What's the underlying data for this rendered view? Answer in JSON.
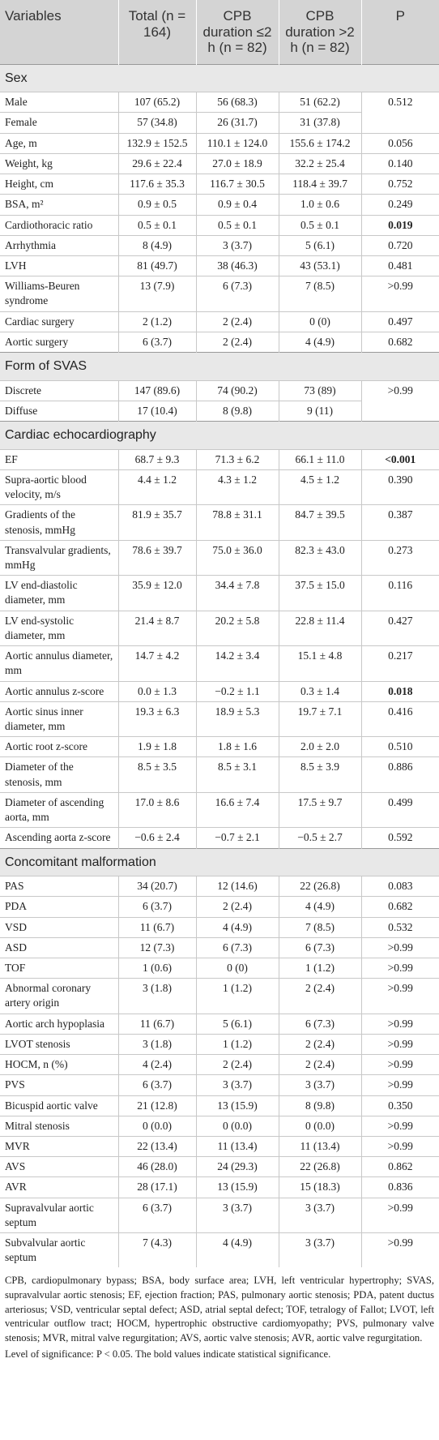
{
  "table": {
    "header": [
      "Variables",
      "Total (n = 164)",
      "CPB duration ≤2 h (n = 82)",
      "CPB duration >2 h (n = 82)",
      "P"
    ],
    "rows": [
      {
        "section": "Sex"
      },
      {
        "cells": [
          "Male",
          "107 (65.2)",
          "56 (68.3)",
          "51 (62.2)",
          "0.512"
        ]
      },
      {
        "cells": [
          "Female",
          "57 (34.8)",
          "26 (31.7)",
          "31 (37.8)"
        ]
      },
      {
        "cells": [
          "Age, m",
          "132.9 ± 152.5",
          "110.1 ± 124.0",
          "155.6 ± 174.2",
          "0.056"
        ]
      },
      {
        "cells": [
          "Weight, kg",
          "29.6 ± 22.4",
          "27.0 ± 18.9",
          "32.2 ± 25.4",
          "0.140"
        ]
      },
      {
        "cells": [
          "Height, cm",
          "117.6 ± 35.3",
          "116.7 ± 30.5",
          "118.4 ± 39.7",
          "0.752"
        ]
      },
      {
        "cells": [
          "BSA, m²",
          "0.9 ± 0.5",
          "0.9 ± 0.4",
          "1.0 ± 0.6",
          "0.249"
        ]
      },
      {
        "cells": [
          "Cardiothoracic ratio",
          "0.5 ± 0.1",
          "0.5 ± 0.1",
          "0.5 ± 0.1",
          "0.019"
        ],
        "significant": true
      },
      {
        "cells": [
          "Arrhythmia",
          "8 (4.9)",
          "3 (3.7)",
          "5 (6.1)",
          "0.720"
        ]
      },
      {
        "cells": [
          "LVH",
          "81 (49.7)",
          "38 (46.3)",
          "43 (53.1)",
          "0.481"
        ]
      },
      {
        "cells": [
          "Williams-Beuren syndrome",
          "13 (7.9)",
          "6 (7.3)",
          "7 (8.5)",
          ">0.99"
        ]
      },
      {
        "cells": [
          "Cardiac surgery",
          "2 (1.2)",
          "2 (2.4)",
          "0 (0)",
          "0.497"
        ]
      },
      {
        "cells": [
          "Aortic surgery",
          "6 (3.7)",
          "2 (2.4)",
          "4 (4.9)",
          "0.682"
        ]
      },
      {
        "section": "Form of SVAS"
      },
      {
        "cells": [
          "Discrete",
          "147 (89.6)",
          "74 (90.2)",
          "73 (89)",
          ">0.99"
        ]
      },
      {
        "cells": [
          "Diffuse",
          "17 (10.4)",
          "8 (9.8)",
          "9 (11)"
        ]
      },
      {
        "section": "Cardiac echocardiography"
      },
      {
        "cells": [
          "EF",
          "68.7 ± 9.3",
          "71.3 ± 6.2",
          "66.1 ± 11.0",
          "<0.001"
        ],
        "significant": true
      },
      {
        "cells": [
          "Supra-aortic blood velocity, m/s",
          "4.4 ± 1.2",
          "4.3 ± 1.2",
          "4.5 ± 1.2",
          "0.390"
        ]
      },
      {
        "cells": [
          "Gradients of the stenosis, mmHg",
          "81.9 ± 35.7",
          "78.8 ± 31.1",
          "84.7 ± 39.5",
          "0.387"
        ]
      },
      {
        "cells": [
          "Transvalvular gradients, mmHg",
          "78.6 ± 39.7",
          "75.0 ± 36.0",
          "82.3 ± 43.0",
          "0.273"
        ]
      },
      {
        "cells": [
          "LV end-diastolic diameter, mm",
          "35.9 ± 12.0",
          "34.4 ± 7.8",
          "37.5 ± 15.0",
          "0.116"
        ]
      },
      {
        "cells": [
          "LV end-systolic diameter, mm",
          "21.4 ± 8.7",
          "20.2 ± 5.8",
          "22.8 ± 11.4",
          "0.427"
        ]
      },
      {
        "cells": [
          "Aortic annulus diameter, mm",
          "14.7 ± 4.2",
          "14.2 ± 3.4",
          "15.1 ± 4.8",
          "0.217"
        ]
      },
      {
        "cells": [
          "Aortic annulus z-score",
          "0.0 ± 1.3",
          "−0.2 ± 1.1",
          "0.3 ± 1.4",
          "0.018"
        ],
        "significant": true
      },
      {
        "cells": [
          "Aortic sinus inner diameter, mm",
          "19.3 ± 6.3",
          "18.9 ± 5.3",
          "19.7 ± 7.1",
          "0.416"
        ]
      },
      {
        "cells": [
          "Aortic root z-score",
          "1.9 ± 1.8",
          "1.8 ± 1.6",
          "2.0 ± 2.0",
          "0.510"
        ]
      },
      {
        "cells": [
          "Diameter of the stenosis, mm",
          "8.5 ± 3.5",
          "8.5 ± 3.1",
          "8.5 ± 3.9",
          "0.886"
        ]
      },
      {
        "cells": [
          "Diameter of ascending aorta, mm",
          "17.0 ± 8.6",
          "16.6 ± 7.4",
          "17.5 ± 9.7",
          "0.499"
        ]
      },
      {
        "cells": [
          "Ascending aorta z-score",
          "−0.6 ± 2.4",
          "−0.7 ± 2.1",
          "−0.5 ± 2.7",
          "0.592"
        ]
      },
      {
        "section": "Concomitant malformation"
      },
      {
        "cells": [
          "PAS",
          "34 (20.7)",
          "12 (14.6)",
          "22 (26.8)",
          "0.083"
        ]
      },
      {
        "cells": [
          "PDA",
          "6 (3.7)",
          "2 (2.4)",
          "4 (4.9)",
          "0.682"
        ]
      },
      {
        "cells": [
          "VSD",
          "11 (6.7)",
          "4 (4.9)",
          "7 (8.5)",
          "0.532"
        ]
      },
      {
        "cells": [
          "ASD",
          "12 (7.3)",
          "6 (7.3)",
          "6 (7.3)",
          ">0.99"
        ]
      },
      {
        "cells": [
          "TOF",
          "1 (0.6)",
          "0 (0)",
          "1 (1.2)",
          ">0.99"
        ]
      },
      {
        "cells": [
          "Abnormal coronary artery origin",
          "3 (1.8)",
          "1 (1.2)",
          "2 (2.4)",
          ">0.99"
        ]
      },
      {
        "cells": [
          "Aortic arch hypoplasia",
          "11 (6.7)",
          "5 (6.1)",
          "6 (7.3)",
          ">0.99"
        ]
      },
      {
        "cells": [
          "LVOT stenosis",
          "3 (1.8)",
          "1 (1.2)",
          "2 (2.4)",
          ">0.99"
        ]
      },
      {
        "cells": [
          "HOCM, n (%)",
          "4 (2.4)",
          "2 (2.4)",
          "2 (2.4)",
          ">0.99"
        ]
      },
      {
        "cells": [
          "PVS",
          "6 (3.7)",
          "3 (3.7)",
          "3 (3.7)",
          ">0.99"
        ]
      },
      {
        "cells": [
          "Bicuspid aortic valve",
          "21 (12.8)",
          "13 (15.9)",
          "8 (9.8)",
          "0.350"
        ]
      },
      {
        "cells": [
          "Mitral stenosis",
          "0 (0.0)",
          "0 (0.0)",
          "0 (0.0)",
          ">0.99"
        ]
      },
      {
        "cells": [
          "MVR",
          "22 (13.4)",
          "11 (13.4)",
          "11 (13.4)",
          ">0.99"
        ]
      },
      {
        "cells": [
          "AVS",
          "46 (28.0)",
          "24 (29.3)",
          "22 (26.8)",
          "0.862"
        ]
      },
      {
        "cells": [
          "AVR",
          "28 (17.1)",
          "13 (15.9)",
          "15 (18.3)",
          "0.836"
        ]
      },
      {
        "cells": [
          "Supravalvular aortic septum",
          "6 (3.7)",
          "3 (3.7)",
          "3 (3.7)",
          ">0.99"
        ]
      },
      {
        "cells": [
          "Subvalvular aortic septum",
          "7 (4.3)",
          "4 (4.9)",
          "3 (3.7)",
          ">0.99"
        ]
      }
    ],
    "footnotes": [
      "CPB, cardiopulmonary bypass; BSA, body surface area; LVH, left ventricular hypertrophy; SVAS, supravalvular aortic stenosis; EF, ejection fraction; PAS, pulmonary aortic stenosis; PDA, patent ductus arteriosus; VSD, ventricular septal defect; ASD, atrial septal defect; TOF, tetralogy of Fallot; LVOT, left ventricular outflow tract; HOCM, hypertrophic obstructive cardiomyopathy; PVS, pulmonary valve stenosis; MVR, mitral valve regurgitation; AVS, aortic valve stenosis; AVR, aortic valve regurgitation.",
      "Level of significance: P < 0.05. The bold values indicate statistical significance."
    ]
  }
}
